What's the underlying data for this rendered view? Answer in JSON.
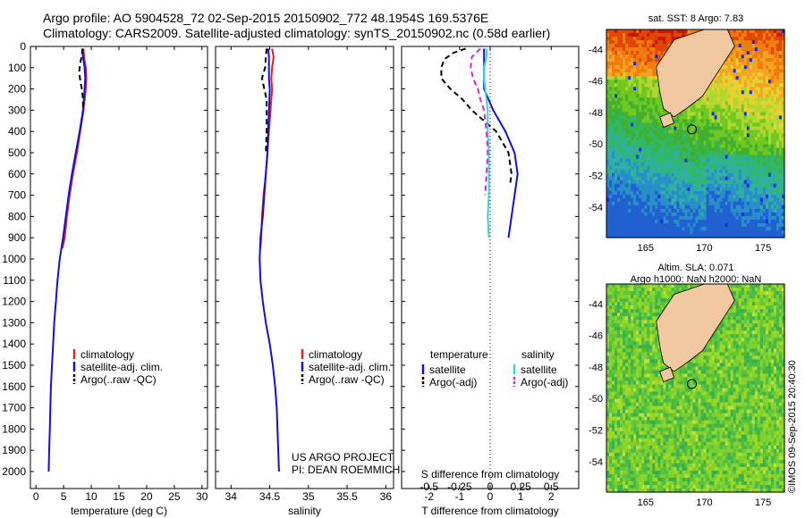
{
  "header": {
    "line1": "Argo profile: AO 5904528_72 02-Sep-2015 20150902_772 48.1954S 169.5376E",
    "line2": "Climatology: CARS2009. Satellite-adjusted climatology: synTS_20150902.nc (0.58d earlier)"
  },
  "colors": {
    "climatology": "#e0201a",
    "satellite": "#1010d8",
    "argo": "#000000",
    "sat_sal": "#30d8e0",
    "argo_sal": "#e020e0"
  },
  "chart_data": [
    {
      "type": "line",
      "id": "temperature",
      "xlabel": "temperature (deg C)",
      "xlim": [
        -1,
        31
      ],
      "ylim": [
        0,
        2080
      ],
      "xticks": [
        0,
        5,
        10,
        15,
        20,
        25,
        30
      ],
      "yticks": [
        0,
        100,
        200,
        300,
        400,
        500,
        600,
        700,
        800,
        900,
        1000,
        1100,
        1200,
        1300,
        1400,
        1500,
        1600,
        1700,
        1800,
        1900,
        2000
      ],
      "legend": [
        "climatology",
        "satellite-adj. clim.",
        "Argo(..raw -QC)"
      ],
      "series": [
        {
          "name": "climatology",
          "depth": [
            10,
            50,
            100,
            150,
            200,
            250,
            300,
            400,
            500,
            600,
            700,
            800,
            900,
            950
          ],
          "values": [
            8.6,
            8.7,
            9.0,
            9.1,
            9.0,
            8.8,
            8.6,
            8.0,
            7.4,
            6.7,
            6.1,
            5.6,
            5.2,
            4.8
          ]
        },
        {
          "name": "satellite-adj. clim.",
          "depth": [
            10,
            50,
            100,
            150,
            200,
            300,
            400,
            500,
            600,
            700,
            800,
            900,
            1000,
            1100,
            1200,
            1300,
            1400,
            1500,
            1600,
            1700,
            1800,
            1900,
            2000
          ],
          "values": [
            8.4,
            8.5,
            8.8,
            8.9,
            8.8,
            8.5,
            7.9,
            7.2,
            6.5,
            5.9,
            5.4,
            4.9,
            4.3,
            3.9,
            3.6,
            3.3,
            3.1,
            2.9,
            2.7,
            2.6,
            2.5,
            2.4,
            2.3
          ]
        },
        {
          "name": "Argo(..raw -QC)",
          "depth": [
            10,
            40,
            80,
            120,
            160,
            200,
            250,
            300
          ],
          "values": [
            8.4,
            8.3,
            8.0,
            7.8,
            8.0,
            8.3,
            8.5,
            8.5
          ]
        }
      ]
    },
    {
      "type": "line",
      "id": "salinity",
      "xlabel": "salinity",
      "xlim": [
        33.8,
        36.1
      ],
      "ylim": [
        0,
        2080
      ],
      "xticks": [
        34,
        34.5,
        35,
        35.5,
        36
      ],
      "legend": [
        "climatology",
        "satellite-adj. clim.",
        "Argo(..raw -QC)"
      ],
      "annotation": [
        "US ARGO PROJECT",
        "PI: DEAN ROEMMICH"
      ],
      "series": [
        {
          "name": "climatology",
          "depth": [
            10,
            50,
            100,
            150,
            200,
            300,
            400,
            500,
            600,
            700,
            800,
            900,
            950
          ],
          "values": [
            34.53,
            34.55,
            34.53,
            34.52,
            34.53,
            34.51,
            34.49,
            34.47,
            34.45,
            34.42,
            34.4,
            34.39,
            34.38
          ]
        },
        {
          "name": "satellite-adj. clim.",
          "depth": [
            10,
            50,
            100,
            150,
            200,
            300,
            400,
            500,
            600,
            700,
            800,
            900,
            1000,
            1100,
            1200,
            1300,
            1400,
            1500,
            1600,
            1700,
            1800,
            1900,
            2000
          ],
          "values": [
            34.48,
            34.49,
            34.49,
            34.49,
            34.5,
            34.49,
            34.48,
            34.47,
            34.45,
            34.43,
            34.41,
            34.38,
            34.37,
            34.38,
            34.41,
            34.45,
            34.5,
            34.54,
            34.57,
            34.59,
            34.6,
            34.61,
            34.62
          ]
        },
        {
          "name": "Argo(..raw -QC)",
          "depth": [
            10,
            50,
            100,
            150,
            200,
            250,
            300,
            400,
            500
          ],
          "values": [
            34.46,
            34.45,
            34.44,
            34.4,
            34.43,
            34.46,
            34.46,
            34.46,
            34.45
          ]
        }
      ]
    },
    {
      "type": "line",
      "id": "differences",
      "xlabel": "T difference from climatology",
      "xlabel_top": "S difference from climatology",
      "xlim": [
        -2.9,
        2.9
      ],
      "ylim": [
        0,
        2080
      ],
      "xticks": [
        -2,
        -1,
        0,
        1,
        2
      ],
      "sticks": [
        "-0.5",
        "-0.25",
        "0",
        "0.25",
        "0.5"
      ],
      "legend_headers": [
        "temperature",
        "salinity"
      ],
      "legend": [
        "satellite",
        "Argo(-adj)",
        "satellite",
        "Argo(-adj)"
      ],
      "series": [
        {
          "name": "T satellite",
          "depth": [
            10,
            50,
            100,
            150,
            200,
            300,
            400,
            500,
            600,
            700,
            800,
            900
          ],
          "values": [
            -0.2,
            -0.2,
            -0.2,
            -0.2,
            -0.2,
            0.1,
            0.5,
            0.8,
            0.9,
            0.8,
            0.7,
            0.6
          ]
        },
        {
          "name": "T Argo(-adj)",
          "depth": [
            10,
            30,
            60,
            100,
            150,
            200,
            250,
            300,
            400,
            500,
            600,
            650
          ],
          "values": [
            -0.8,
            -1.2,
            -1.5,
            -1.6,
            -1.6,
            -1.3,
            -0.9,
            -0.6,
            0.2,
            0.6,
            0.7,
            0.65
          ]
        },
        {
          "name": "S satellite",
          "depth": [
            10,
            50,
            100,
            150,
            200,
            300,
            400,
            500,
            600,
            700,
            800,
            900
          ],
          "values": [
            -0.03,
            -0.03,
            -0.05,
            -0.05,
            -0.04,
            -0.02,
            -0.02,
            -0.01,
            -0.01,
            -0.01,
            -0.02,
            -0.01
          ]
        },
        {
          "name": "S Argo(-adj)",
          "depth": [
            10,
            50,
            100,
            150,
            200,
            250,
            300,
            400,
            500,
            600,
            700
          ],
          "values": [
            -0.08,
            -0.15,
            -0.16,
            -0.14,
            -0.1,
            -0.08,
            -0.05,
            -0.03,
            -0.02,
            -0.03,
            -0.04
          ]
        }
      ]
    },
    {
      "type": "heatmap",
      "id": "sst-map",
      "title": "sat. SST: 8 Argo: 7.83",
      "xticks": [
        "165",
        "170",
        "175"
      ],
      "yticks": [
        "-44",
        "-46",
        "-48",
        "-50",
        "-52",
        "-54"
      ]
    },
    {
      "type": "heatmap",
      "id": "sla-map",
      "title1": "Altim. SLA: 0.071",
      "title2": "Argo h1000: NaN h2000: NaN",
      "xticks": [
        "165",
        "170",
        "175"
      ],
      "yticks": [
        "-44",
        "-46",
        "-48",
        "-50",
        "-52",
        "-54"
      ]
    }
  ],
  "footer": {
    "copyright": "©IMOS 09-Sep-2015 20:40:30"
  }
}
